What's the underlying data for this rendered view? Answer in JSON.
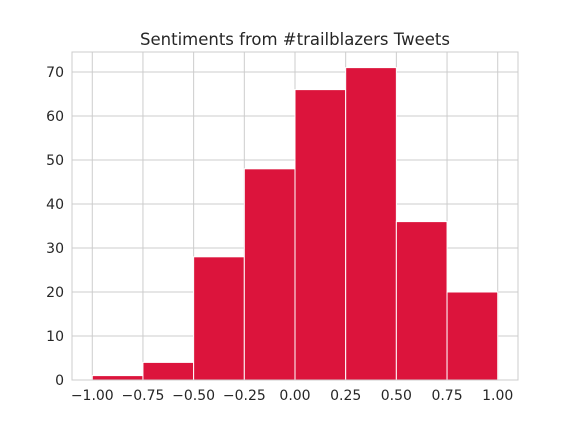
{
  "chart_data": {
    "type": "bar",
    "title": "Sentiments from #trailblazers Tweets",
    "xlabel": "",
    "ylabel": "",
    "bin_edges": [
      -1.0,
      -0.75,
      -0.5,
      -0.25,
      0.0,
      0.25,
      0.5,
      0.75,
      1.0
    ],
    "values": [
      1,
      4,
      28,
      48,
      66,
      71,
      36,
      20
    ],
    "xlim": [
      -1.1,
      1.1
    ],
    "ylim": [
      0,
      74.55
    ],
    "x_ticks": [
      -1.0,
      -0.75,
      -0.5,
      -0.25,
      0.0,
      0.25,
      0.5,
      0.75,
      1.0
    ],
    "x_tick_labels": [
      "−1.00",
      "−0.75",
      "−0.50",
      "−0.25",
      "0.00",
      "0.25",
      "0.50",
      "0.75",
      "1.00"
    ],
    "y_ticks": [
      0,
      10,
      20,
      30,
      40,
      50,
      60,
      70
    ],
    "y_tick_labels": [
      "0",
      "10",
      "20",
      "30",
      "40",
      "50",
      "60",
      "70"
    ],
    "grid": true,
    "bar_color": "#dc143c",
    "grid_color": "#cccccc"
  }
}
